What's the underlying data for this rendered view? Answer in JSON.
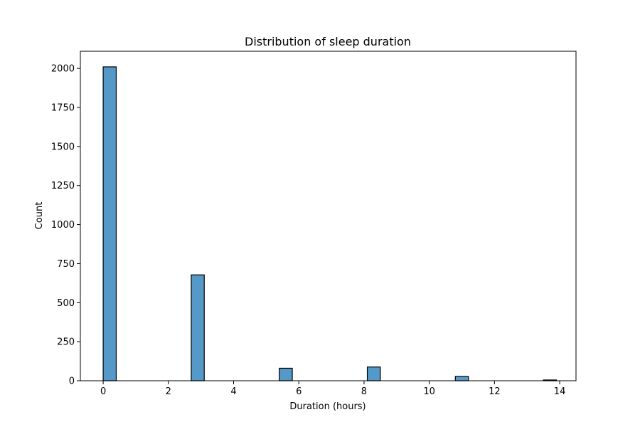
{
  "chart_data": {
    "type": "bar",
    "title": "Distribution of sleep duration",
    "xlabel": "Duration (hours)",
    "ylabel": "Count",
    "xlim": [
      -0.7,
      14.5
    ],
    "ylim": [
      0,
      2110
    ],
    "xticks": [
      0,
      2,
      4,
      6,
      8,
      10,
      12,
      14
    ],
    "xtick_labels": [
      "0",
      "2",
      "4",
      "6",
      "8",
      "10",
      "12",
      "14"
    ],
    "yticks": [
      0,
      250,
      500,
      750,
      1000,
      1250,
      1500,
      1750,
      2000
    ],
    "ytick_labels": [
      "0",
      "250",
      "500",
      "750",
      "1000",
      "1250",
      "1500",
      "1750",
      "2000"
    ],
    "bin_width": 0.4,
    "bins": [
      {
        "x_start": 0.0,
        "x_end": 0.4,
        "count": 2010
      },
      {
        "x_start": 2.7,
        "x_end": 3.1,
        "count": 678
      },
      {
        "x_start": 5.4,
        "x_end": 5.8,
        "count": 80
      },
      {
        "x_start": 8.1,
        "x_end": 8.5,
        "count": 88
      },
      {
        "x_start": 10.8,
        "x_end": 11.2,
        "count": 28
      },
      {
        "x_start": 13.5,
        "x_end": 13.9,
        "count": 5
      }
    ],
    "grid": false,
    "bar_color": "#5499c7",
    "edge_color": "#000000"
  }
}
